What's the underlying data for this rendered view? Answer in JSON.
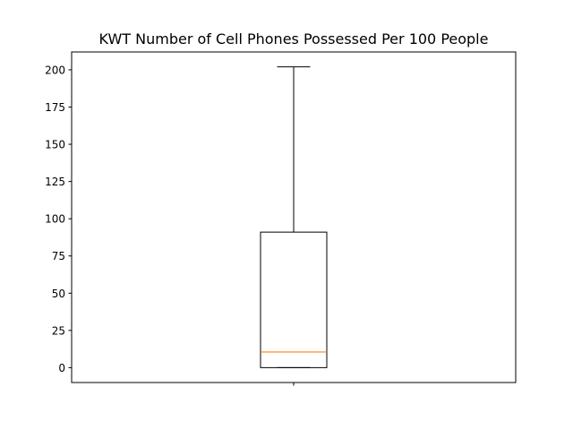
{
  "chart_data": {
    "type": "boxplot",
    "title": "KWT Number of Cell Phones Possessed Per 100 People",
    "xlabel": "",
    "ylabel": "",
    "ylim": [
      -10,
      212
    ],
    "yticks": [
      0,
      25,
      50,
      75,
      100,
      125,
      150,
      175,
      200
    ],
    "grid": false,
    "boxes": [
      {
        "whisker_low": 0,
        "q1": 0,
        "median": 10.5,
        "q3": 91,
        "whisker_high": 202
      }
    ],
    "colors": {
      "box": "#000000",
      "median": "#ff7f0e"
    }
  }
}
